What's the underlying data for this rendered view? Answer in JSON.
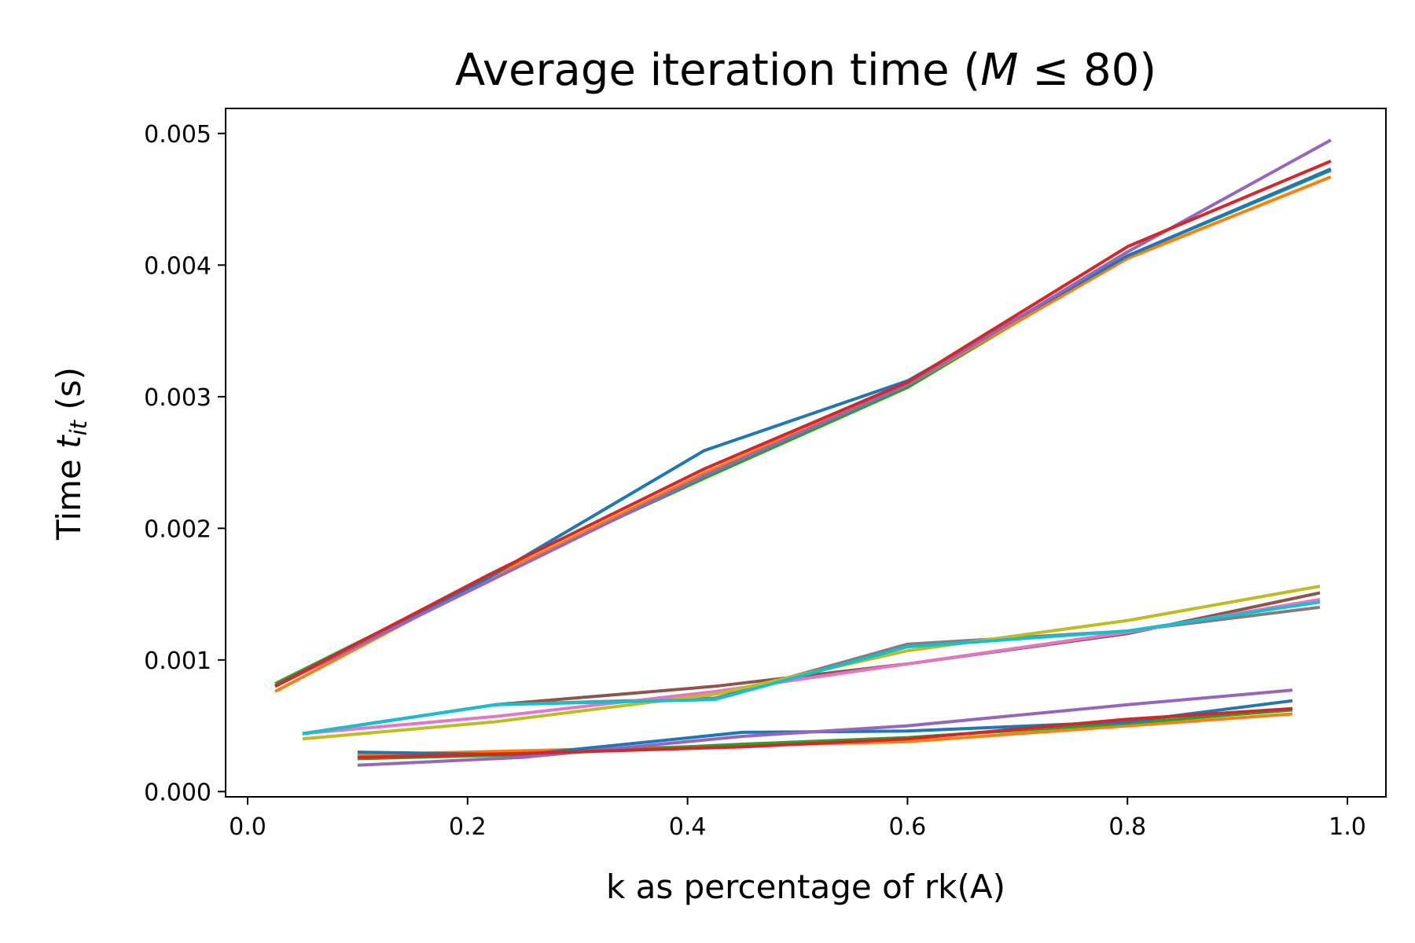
{
  "chart_data": {
    "type": "line",
    "title": "Average iteration time (M ≤ 80)",
    "title_parts": {
      "prefix": "Average iteration time (",
      "var": "M",
      "rest": " ≤ 80)"
    },
    "xlabel": "k as percentage of rk(A)",
    "ylabel": "Time t_it (s)",
    "ylabel_parts": {
      "prefix": "Time ",
      "var": "t",
      "sub": "it",
      "suffix": " (s)"
    },
    "xlim": [
      -0.02,
      1.035
    ],
    "ylim": [
      -4e-05,
      0.00519
    ],
    "xticks": [
      0.0,
      0.2,
      0.4,
      0.6,
      0.8,
      1.0
    ],
    "xtick_labels": [
      "0.0",
      "0.2",
      "0.4",
      "0.6",
      "0.8",
      "1.0"
    ],
    "yticks": [
      0.0,
      0.001,
      0.002,
      0.003,
      0.004,
      0.005
    ],
    "ytick_labels": [
      "0.000",
      "0.001",
      "0.002",
      "0.003",
      "0.004",
      "0.005"
    ],
    "grid": false,
    "series": [
      {
        "color": "#2ca02c",
        "x": [
          0.025,
          0.22,
          0.415,
          0.6,
          0.8,
          0.985
        ],
        "y": [
          0.00082,
          0.00163,
          0.00238,
          0.00307,
          0.00407,
          0.00472
        ]
      },
      {
        "color": "#ff7f0e",
        "x": [
          0.025,
          0.22,
          0.415,
          0.6,
          0.8,
          0.985
        ],
        "y": [
          0.00076,
          0.00162,
          0.00242,
          0.00309,
          0.00405,
          0.00467
        ]
      },
      {
        "color": "#1f77b4",
        "x": [
          0.025,
          0.22,
          0.415,
          0.6,
          0.8,
          0.985
        ],
        "y": [
          0.0008,
          0.00163,
          0.00259,
          0.00312,
          0.00407,
          0.00473
        ]
      },
      {
        "color": "#9467bd",
        "x": [
          0.025,
          0.22,
          0.415,
          0.6,
          0.8,
          0.985
        ],
        "y": [
          0.0008,
          0.0016,
          0.0024,
          0.00309,
          0.0041,
          0.00495
        ]
      },
      {
        "color": "#d62728",
        "x": [
          0.025,
          0.22,
          0.415,
          0.6,
          0.8,
          0.985
        ],
        "y": [
          0.0008,
          0.00165,
          0.00245,
          0.00311,
          0.00414,
          0.00479
        ]
      },
      {
        "color": "#8c564b",
        "x": [
          0.05,
          0.225,
          0.425,
          0.6,
          0.8,
          0.975
        ],
        "y": [
          0.00044,
          0.00066,
          0.0008,
          0.00097,
          0.0012,
          0.00151
        ]
      },
      {
        "color": "#7f7f7f",
        "x": [
          0.05,
          0.225,
          0.425,
          0.6,
          0.8,
          0.975
        ],
        "y": [
          0.00044,
          0.00066,
          0.00071,
          0.00112,
          0.00122,
          0.0014
        ]
      },
      {
        "color": "#e377c2",
        "x": [
          0.05,
          0.225,
          0.425,
          0.6,
          0.8,
          0.975
        ],
        "y": [
          0.00044,
          0.00057,
          0.00076,
          0.00097,
          0.00121,
          0.00146
        ]
      },
      {
        "color": "#bcbd22",
        "x": [
          0.05,
          0.225,
          0.425,
          0.6,
          0.8,
          0.975
        ],
        "y": [
          0.0004,
          0.00053,
          0.00074,
          0.00107,
          0.0013,
          0.00156
        ]
      },
      {
        "color": "#17becf",
        "x": [
          0.05,
          0.225,
          0.425,
          0.6,
          0.8,
          0.975
        ],
        "y": [
          0.00044,
          0.00066,
          0.0007,
          0.0011,
          0.00122,
          0.00144
        ]
      },
      {
        "color": "#ff7f0e",
        "x": [
          0.1,
          0.25,
          0.45,
          0.6,
          0.8,
          0.95
        ],
        "y": [
          0.00028,
          0.00031,
          0.00035,
          0.00038,
          0.0005,
          0.00059
        ]
      },
      {
        "color": "#2ca02c",
        "x": [
          0.1,
          0.25,
          0.45,
          0.6,
          0.8,
          0.95
        ],
        "y": [
          0.00025,
          0.00028,
          0.00036,
          0.00041,
          0.00052,
          0.00062
        ]
      },
      {
        "color": "#1f77b4",
        "x": [
          0.1,
          0.25,
          0.45,
          0.6,
          0.8,
          0.95
        ],
        "y": [
          0.0003,
          0.00028,
          0.00045,
          0.00046,
          0.00053,
          0.00069
        ]
      },
      {
        "color": "#9467bd",
        "x": [
          0.1,
          0.25,
          0.45,
          0.6,
          0.8,
          0.95
        ],
        "y": [
          0.0002,
          0.00026,
          0.00042,
          0.0005,
          0.00066,
          0.00077
        ]
      },
      {
        "color": "#d62728",
        "x": [
          0.1,
          0.25,
          0.45,
          0.6,
          0.8,
          0.95
        ],
        "y": [
          0.00026,
          0.00029,
          0.00034,
          0.0004,
          0.00055,
          0.00063
        ]
      }
    ]
  }
}
